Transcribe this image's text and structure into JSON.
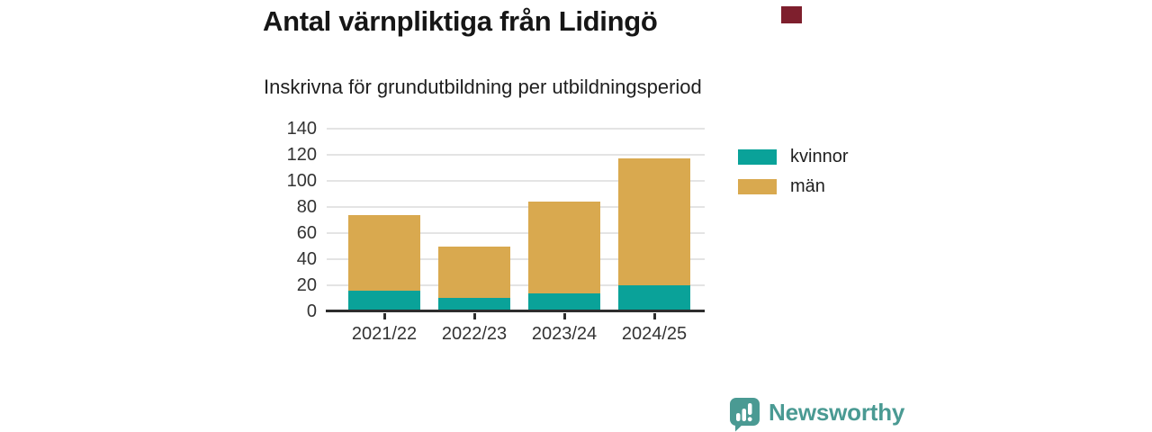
{
  "header": {
    "title": "Antal värnpliktiga från Lidingö",
    "subtitle": "Inskrivna för grundutbildning per utbildningsperiod",
    "marker_color": "#7e1f2d"
  },
  "chart_data": {
    "type": "bar",
    "stacked": true,
    "title": "Antal värnpliktiga från Lidingö",
    "subtitle": "Inskrivna för grundutbildning per utbildningsperiod",
    "categories": [
      "2021/22",
      "2022/23",
      "2023/24",
      "2024/25"
    ],
    "series": [
      {
        "name": "kvinnor",
        "color": "#0aa299",
        "values": [
          16,
          10,
          14,
          20
        ]
      },
      {
        "name": "män",
        "color": "#d9a94f",
        "values": [
          58,
          39,
          70,
          97
        ]
      }
    ],
    "totals": [
      74,
      49,
      84,
      117
    ],
    "xlabel": "",
    "ylabel": "",
    "ylim": [
      0,
      140
    ],
    "yticks": [
      0,
      20,
      40,
      60,
      80,
      100,
      120,
      140
    ],
    "grid": "horizontal",
    "gridline_color": "#e4e4e4",
    "axis_color": "#2d2d2d",
    "legend_position": "right"
  },
  "legend": {
    "items": [
      {
        "label": "kvinnor",
        "color": "#0aa299"
      },
      {
        "label": "män",
        "color": "#d9a94f"
      }
    ]
  },
  "branding": {
    "name": "Newsworthy",
    "color": "#4a9a93",
    "icon": "newsworthy-speech-bubble-bar-chart"
  }
}
